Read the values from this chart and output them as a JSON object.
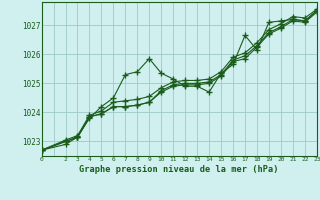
{
  "title": "Graphe pression niveau de la mer (hPa)",
  "background_color": "#d0f0f0",
  "grid_color": "#a0c8c8",
  "line_color": "#1a5c1a",
  "xlim": [
    0,
    23
  ],
  "ylim": [
    1022.5,
    1027.8
  ],
  "yticks": [
    1023,
    1024,
    1025,
    1026,
    1027
  ],
  "xticks": [
    0,
    2,
    3,
    4,
    5,
    6,
    7,
    8,
    9,
    10,
    11,
    12,
    13,
    14,
    15,
    16,
    17,
    18,
    19,
    20,
    21,
    22,
    23
  ],
  "series": [
    {
      "x": [
        0,
        2,
        3,
        4,
        5,
        6,
        7,
        8,
        9,
        10,
        11,
        12,
        13,
        14,
        15,
        16,
        17,
        18,
        19,
        20,
        21,
        22,
        23
      ],
      "y": [
        1022.7,
        1022.9,
        1023.15,
        1023.8,
        1024.2,
        1024.5,
        1025.3,
        1025.4,
        1025.85,
        1025.35,
        1025.15,
        1024.9,
        1024.9,
        1024.7,
        1025.35,
        1025.65,
        1026.65,
        1026.15,
        1027.1,
        1027.15,
        1027.2,
        1027.15,
        1027.5
      ]
    },
    {
      "x": [
        0,
        2,
        3,
        4,
        5,
        6,
        7,
        8,
        9,
        10,
        11,
        12,
        13,
        14,
        15,
        16,
        17,
        18,
        19,
        20,
        21,
        22,
        23
      ],
      "y": [
        1022.7,
        1023.0,
        1023.15,
        1023.85,
        1023.95,
        1024.2,
        1024.2,
        1024.25,
        1024.35,
        1024.7,
        1024.9,
        1024.95,
        1024.95,
        1025.0,
        1025.25,
        1025.75,
        1025.85,
        1026.25,
        1026.7,
        1026.9,
        1027.15,
        1027.1,
        1027.45
      ]
    },
    {
      "x": [
        0,
        2,
        3,
        4,
        5,
        6,
        7,
        8,
        9,
        10,
        11,
        12,
        13,
        14,
        15,
        16,
        17,
        18,
        19,
        20,
        21,
        22,
        23
      ],
      "y": [
        1022.7,
        1023.0,
        1023.15,
        1023.85,
        1023.95,
        1024.2,
        1024.2,
        1024.25,
        1024.35,
        1024.75,
        1024.95,
        1025.0,
        1025.0,
        1025.05,
        1025.3,
        1025.8,
        1025.95,
        1026.3,
        1026.75,
        1026.95,
        1027.2,
        1027.15,
        1027.5
      ]
    },
    {
      "x": [
        0,
        2,
        3,
        4,
        5,
        6,
        7,
        8,
        9,
        10,
        11,
        12,
        13,
        14,
        15,
        16,
        17,
        18,
        19,
        20,
        21,
        22,
        23
      ],
      "y": [
        1022.7,
        1023.05,
        1023.2,
        1023.9,
        1024.05,
        1024.35,
        1024.4,
        1024.45,
        1024.55,
        1024.85,
        1025.05,
        1025.1,
        1025.1,
        1025.15,
        1025.4,
        1025.9,
        1026.05,
        1026.4,
        1026.85,
        1027.05,
        1027.3,
        1027.25,
        1027.55
      ]
    }
  ]
}
